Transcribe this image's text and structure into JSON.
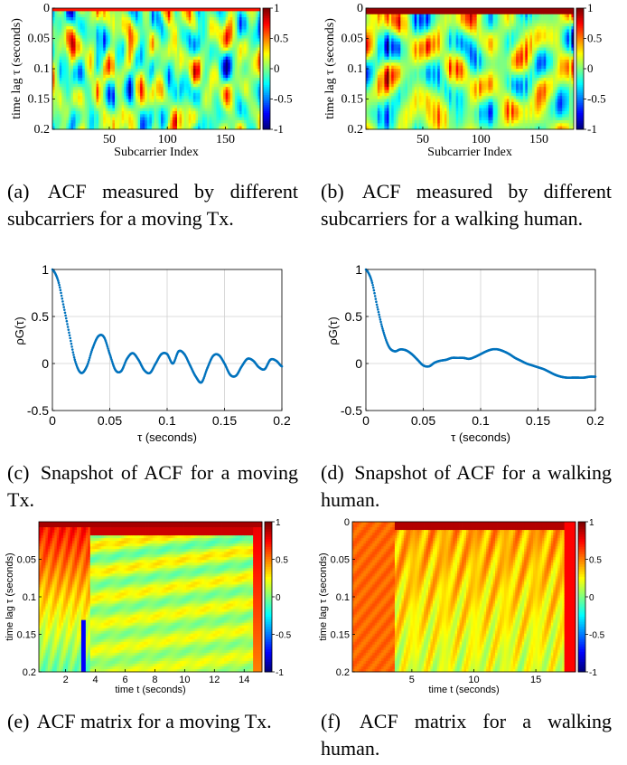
{
  "colors": {
    "jet": [
      "#00008F",
      "#0000FF",
      "#0080FF",
      "#00FFFF",
      "#80FF80",
      "#FFFF00",
      "#FF8000",
      "#FF0000",
      "#800000"
    ],
    "line": "#0072BD"
  },
  "captions": {
    "a": {
      "label": "(a)",
      "text": "ACF measured by different subcarriers for a moving Tx."
    },
    "b": {
      "label": "(b)",
      "text": "ACF measured by different subcarriers for a walking human."
    },
    "c": {
      "label": "(c)",
      "text": "Snapshot of ACF for a moving Tx."
    },
    "d": {
      "label": "(d)",
      "text": "Snapshot of ACF for a walking human."
    },
    "e": {
      "label": "(e)",
      "text": "ACF matrix for a moving Tx."
    },
    "f": {
      "label": "(f)",
      "text": "ACF matrix for a walking human."
    }
  },
  "chart_data": [
    {
      "id": "a",
      "type": "heatmap",
      "xlabel": "Subcarrier Index",
      "ylabel": "time lag τ (seconds)",
      "xlim": [
        1,
        180
      ],
      "ylim": [
        0,
        0.2
      ],
      "xticks": [
        "50",
        "100",
        "150"
      ],
      "yticks": [
        "0",
        "0.05",
        "0.1",
        "0.15",
        "0.2"
      ],
      "colorbar": {
        "range": [
          -1,
          1
        ],
        "ticks": [
          "1",
          "0.5",
          "0",
          "-0.5",
          "-1"
        ]
      }
    },
    {
      "id": "b",
      "type": "heatmap",
      "xlabel": "Subcarrier Index",
      "ylabel": "time lag τ (seconds)",
      "xlim": [
        1,
        180
      ],
      "ylim": [
        0,
        0.2
      ],
      "xticks": [
        "50",
        "100",
        "150"
      ],
      "yticks": [
        "0",
        "0.05",
        "0.1",
        "0.15",
        "0.2"
      ],
      "colorbar": {
        "range": [
          -1,
          1
        ],
        "ticks": [
          "1",
          "0.5",
          "0",
          "-0.5",
          "-1"
        ]
      }
    },
    {
      "id": "c",
      "type": "scatter",
      "xlabel": "τ (seconds)",
      "ylabel": "ρG(τ)",
      "xlim": [
        0,
        0.2
      ],
      "ylim": [
        -0.5,
        1
      ],
      "xticks": [
        "0",
        "0.05",
        "0.1",
        "0.15",
        "0.2"
      ],
      "yticks": [
        "1",
        "0.5",
        "0",
        "-0.5"
      ],
      "grid": true,
      "x": [
        0,
        0.005,
        0.01,
        0.015,
        0.02,
        0.025,
        0.03,
        0.035,
        0.04,
        0.045,
        0.05,
        0.055,
        0.06,
        0.065,
        0.07,
        0.075,
        0.08,
        0.085,
        0.09,
        0.095,
        0.1,
        0.105,
        0.11,
        0.115,
        0.12,
        0.125,
        0.13,
        0.135,
        0.14,
        0.145,
        0.15,
        0.155,
        0.16,
        0.165,
        0.17,
        0.175,
        0.18,
        0.185,
        0.19,
        0.195,
        0.2
      ],
      "y": [
        1.0,
        0.88,
        0.6,
        0.3,
        0.02,
        -0.1,
        -0.03,
        0.16,
        0.29,
        0.28,
        0.1,
        -0.07,
        -0.08,
        0.05,
        0.11,
        0.04,
        -0.07,
        -0.1,
        0.0,
        0.1,
        0.1,
        0.0,
        0.13,
        0.1,
        -0.02,
        -0.14,
        -0.2,
        -0.05,
        0.08,
        0.09,
        0.0,
        -0.12,
        -0.13,
        -0.03,
        0.05,
        0.03,
        -0.04,
        -0.06,
        0.04,
        0.03,
        -0.03
      ]
    },
    {
      "id": "d",
      "type": "scatter",
      "xlabel": "τ (seconds)",
      "ylabel": "ρG(τ)",
      "xlim": [
        0,
        0.2
      ],
      "ylim": [
        -0.5,
        1
      ],
      "xticks": [
        "0",
        "0.05",
        "0.1",
        "0.15",
        "0.2"
      ],
      "yticks": [
        "1",
        "0.5",
        "0",
        "-0.5"
      ],
      "grid": true,
      "x": [
        0,
        0.005,
        0.01,
        0.015,
        0.02,
        0.025,
        0.03,
        0.035,
        0.04,
        0.045,
        0.05,
        0.055,
        0.06,
        0.065,
        0.07,
        0.075,
        0.08,
        0.085,
        0.09,
        0.095,
        0.1,
        0.105,
        0.11,
        0.115,
        0.12,
        0.125,
        0.13,
        0.135,
        0.14,
        0.145,
        0.15,
        0.155,
        0.16,
        0.165,
        0.17,
        0.175,
        0.18,
        0.185,
        0.19,
        0.195,
        0.2
      ],
      "y": [
        1.0,
        0.88,
        0.6,
        0.35,
        0.18,
        0.13,
        0.15,
        0.14,
        0.1,
        0.04,
        -0.02,
        -0.03,
        0.01,
        0.03,
        0.04,
        0.06,
        0.06,
        0.06,
        0.05,
        0.07,
        0.1,
        0.13,
        0.15,
        0.15,
        0.13,
        0.1,
        0.06,
        0.03,
        0.0,
        -0.02,
        -0.04,
        -0.06,
        -0.09,
        -0.12,
        -0.14,
        -0.15,
        -0.15,
        -0.15,
        -0.15,
        -0.14,
        -0.14
      ]
    },
    {
      "id": "e",
      "type": "heatmap",
      "xlabel": "time t (seconds)",
      "ylabel": "time lag τ (seconds)",
      "xlim": [
        0.2,
        15.2
      ],
      "ylim": [
        0,
        0.2
      ],
      "xticks": [
        "2",
        "4",
        "6",
        "8",
        "10",
        "12",
        "14"
      ],
      "yticks": [
        "0.05",
        "0.1",
        "0.15",
        "0.2"
      ],
      "colorbar": {
        "range": [
          -1,
          1
        ],
        "ticks": [
          "1",
          "0.5",
          "0",
          "-0.5",
          "-1"
        ]
      }
    },
    {
      "id": "f",
      "type": "heatmap",
      "xlabel": "time t (seconds)",
      "ylabel": "time lag τ (seconds)",
      "xlim": [
        0.2,
        18.2
      ],
      "ylim": [
        0,
        0.2
      ],
      "xticks": [
        "5",
        "10",
        "15"
      ],
      "yticks": [
        "0",
        "0.05",
        "0.1",
        "0.15",
        "0.2"
      ],
      "colorbar": {
        "range": [
          -1,
          1
        ],
        "ticks": [
          "1",
          "0.5",
          "0",
          "-0.5",
          "-1"
        ]
      }
    }
  ]
}
